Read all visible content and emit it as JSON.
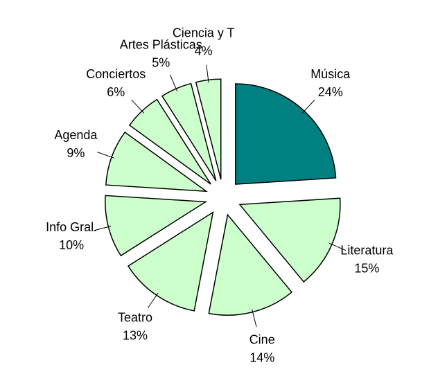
{
  "chart_data": {
    "type": "pie",
    "categories": [
      "Música",
      "Literatura",
      "Cine",
      "Teatro",
      "Info Gral.",
      "Agenda",
      "Conciertos",
      "Artes Plásticas",
      "Ciencia y T"
    ],
    "values": [
      24,
      15,
      14,
      13,
      10,
      9,
      6,
      5,
      4
    ],
    "value_labels": [
      "24%",
      "15%",
      "14%",
      "13%",
      "10%",
      "9%",
      "6%",
      "5%",
      "4%"
    ],
    "colors": [
      "#008080",
      "#ccffcc",
      "#ccffcc",
      "#ccffcc",
      "#ccffcc",
      "#ccffcc",
      "#ccffcc",
      "#ccffcc",
      "#ccffcc"
    ]
  }
}
